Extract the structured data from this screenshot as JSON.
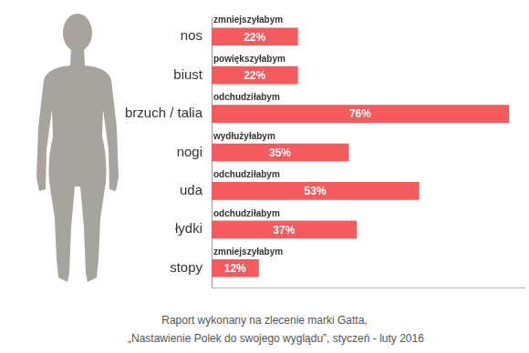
{
  "chart_data": {
    "type": "bar",
    "orientation": "horizontal",
    "categories": [
      "nos",
      "biust",
      "brzuch / talia",
      "nogi",
      "uda",
      "łydki",
      "stopy"
    ],
    "values": [
      22,
      22,
      76,
      35,
      53,
      37,
      12
    ],
    "value_labels": [
      "22%",
      "22%",
      "76%",
      "35%",
      "53%",
      "37%",
      "12%"
    ],
    "annotations": [
      "zmniejszyłabym",
      "powiększyłabym",
      "odchudziłabym",
      "wydłużyłabym",
      "odchudziłabym",
      "odchudziłabym",
      "zmniejszyłabym"
    ],
    "footer": [
      "Raport wykonany na zlecenie marki Gatta,",
      "„Nastawienie Polek do swojego wyglądu”, styczeń - luty 2016"
    ],
    "color": "#f35b5f",
    "xlim": [
      0,
      80
    ],
    "grid": false,
    "data_labels": true,
    "tick_labels": "y"
  }
}
